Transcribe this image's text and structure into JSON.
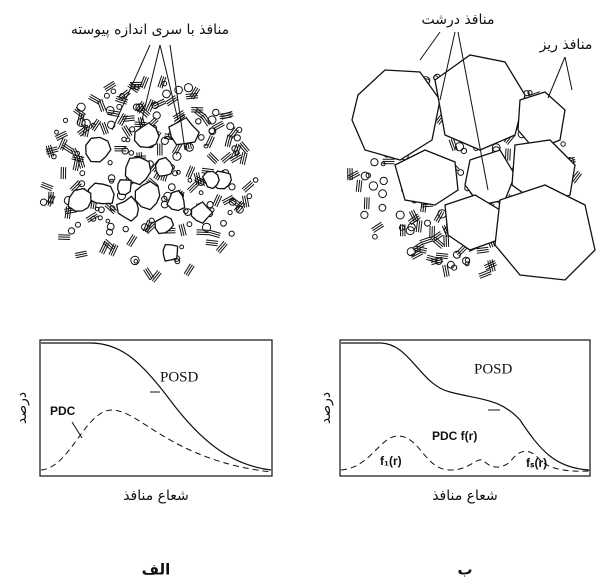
{
  "panels": [
    {
      "caption": "الف",
      "pore_labels": [
        "منافذ با سری اندازه پیوسته"
      ],
      "plot": {
        "y_label": "درصد",
        "x_label": "شعاع منافذ",
        "curve_labels": [
          "POSD",
          "PDC"
        ]
      }
    },
    {
      "caption": "ب",
      "pore_labels": [
        "منافذ درشت",
        "منافذ ریز"
      ],
      "plot": {
        "y_label": "درصد",
        "x_label": "شعاع منافذ",
        "curve_labels": [
          "POSD",
          "PDC f(r)",
          "f₁(r)",
          "fₛ(r)"
        ]
      }
    }
  ]
}
